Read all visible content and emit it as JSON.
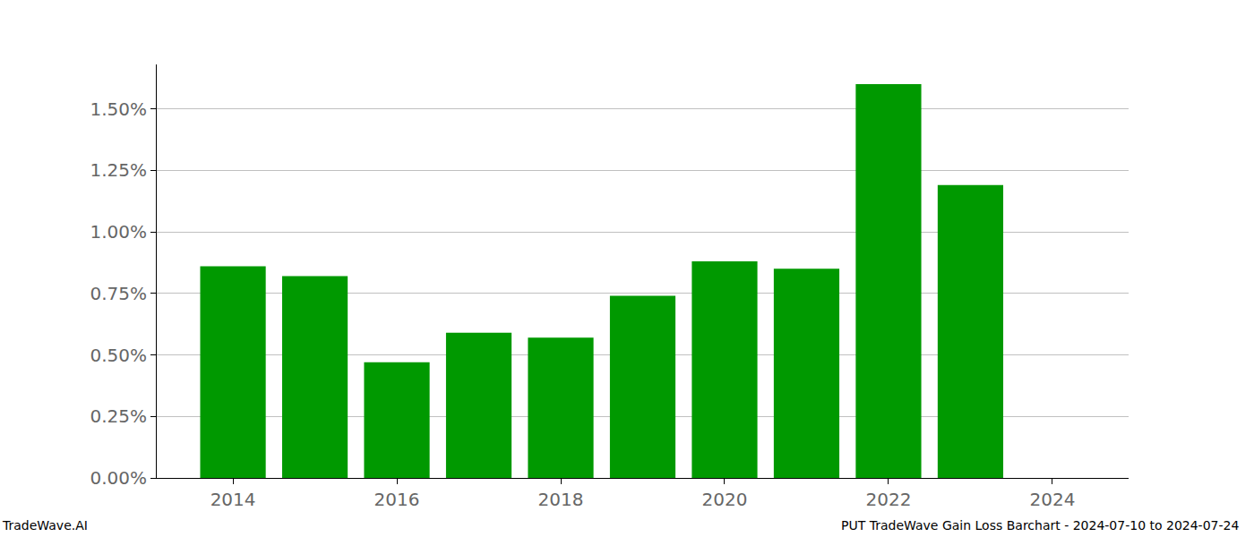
{
  "chart_data": {
    "type": "bar",
    "x": [
      2014,
      2015,
      2016,
      2017,
      2018,
      2019,
      2020,
      2021,
      2022,
      2023
    ],
    "values": [
      0.86,
      0.82,
      0.47,
      0.59,
      0.57,
      0.74,
      0.88,
      0.85,
      1.6,
      1.19
    ],
    "color": "#009900",
    "xlim": [
      2013.07,
      2024.93
    ],
    "xticks": [
      2014,
      2016,
      2018,
      2020,
      2022,
      2024
    ],
    "ylim": [
      0,
      1.68
    ],
    "yticks": [
      {
        "value": 0,
        "label": "0.00%"
      },
      {
        "value": 0.25,
        "label": "0.25%"
      },
      {
        "value": 0.5,
        "label": "0.50%"
      },
      {
        "value": 0.75,
        "label": "0.75%"
      },
      {
        "value": 1.0,
        "label": "1.00%"
      },
      {
        "value": 1.25,
        "label": "1.25%"
      },
      {
        "value": 1.5,
        "label": "1.50%"
      }
    ],
    "grid": true,
    "annotations": [
      "TradeWave.AI",
      "PUT TradeWave Gain Loss Barchart - 2024-07-10 to 2024-07-24"
    ]
  }
}
